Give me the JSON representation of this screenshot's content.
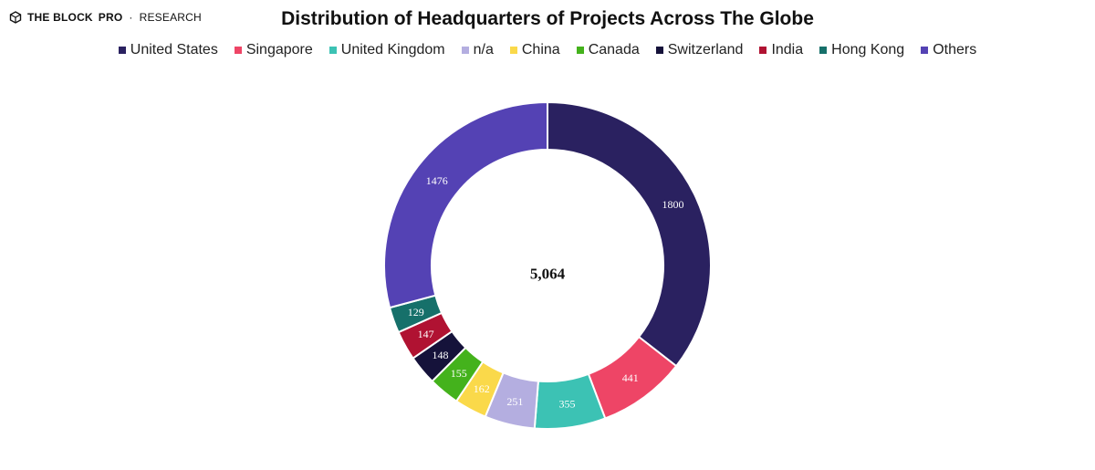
{
  "brand": {
    "name": "THE BLOCK",
    "pro": "PRO",
    "dot": "·",
    "sub": "RESEARCH"
  },
  "chart_data": {
    "type": "pie",
    "title": "Distribution of Headquarters of Projects Across The Globe",
    "center_total": "5,064",
    "legend_position": "top",
    "categories": [
      "United States",
      "Singapore",
      "United Kingdom",
      "n/a",
      "China",
      "Canada",
      "Switzerland",
      "India",
      "Hong Kong",
      "Others"
    ],
    "values": [
      1800,
      441,
      355,
      251,
      162,
      155,
      148,
      147,
      129,
      1476
    ],
    "colors": [
      "#2a2160",
      "#ee4566",
      "#3cc2b4",
      "#b4aee0",
      "#fad94a",
      "#44b21c",
      "#15123a",
      "#b01232",
      "#16706a",
      "#5442b4"
    ]
  }
}
